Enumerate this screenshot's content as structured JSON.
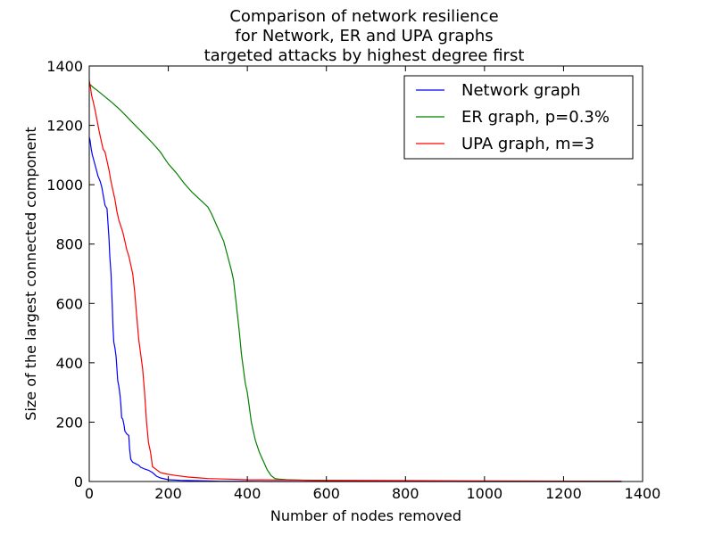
{
  "chart_data": {
    "type": "line",
    "title": [
      "Comparison of network resilience",
      "for Network, ER and UPA graphs",
      "targeted attacks by highest degree first"
    ],
    "xlabel": "Number of nodes removed",
    "ylabel": "Size of the largest connected component",
    "xlim": [
      0,
      1400
    ],
    "ylim": [
      0,
      1400
    ],
    "xticks": [
      0,
      200,
      400,
      600,
      800,
      1000,
      1200,
      1400
    ],
    "yticks": [
      0,
      200,
      400,
      600,
      800,
      1000,
      1200,
      1400
    ],
    "grid": false,
    "legend_position": "top-right",
    "series": [
      {
        "name": "Network graph",
        "color": "#0000ff",
        "x": [
          0,
          2,
          5,
          8,
          12,
          18,
          22,
          28,
          32,
          36,
          40,
          45,
          50,
          52,
          55,
          58,
          60,
          62,
          65,
          68,
          70,
          72,
          75,
          78,
          80,
          82,
          85,
          88,
          90,
          95,
          100,
          102,
          105,
          110,
          115,
          120,
          125,
          130,
          140,
          150,
          160,
          170,
          180,
          200,
          230,
          260,
          300,
          330,
          360,
          400,
          450,
          500,
          1000,
          1347
        ],
        "y": [
          1160,
          1150,
          1120,
          1100,
          1080,
          1050,
          1030,
          1010,
          990,
          960,
          930,
          920,
          820,
          760,
          700,
          600,
          520,
          470,
          450,
          420,
          380,
          340,
          320,
          290,
          260,
          215,
          210,
          190,
          170,
          160,
          155,
          110,
          75,
          65,
          62,
          58,
          55,
          48,
          42,
          38,
          30,
          18,
          12,
          6,
          4,
          3,
          2,
          1,
          1,
          1,
          0,
          0,
          0,
          0
        ]
      },
      {
        "name": "ER graph, p=0.3%",
        "color": "#008000",
        "x": [
          0,
          10,
          20,
          40,
          60,
          80,
          100,
          120,
          140,
          160,
          180,
          190,
          200,
          220,
          240,
          260,
          280,
          300,
          310,
          320,
          330,
          340,
          350,
          360,
          365,
          370,
          375,
          380,
          385,
          390,
          395,
          400,
          405,
          410,
          415,
          420,
          425,
          430,
          435,
          440,
          445,
          450,
          455,
          460,
          465,
          470,
          480,
          500,
          550,
          600,
          700,
          800,
          1000,
          1347
        ],
        "y": [
          1340,
          1328,
          1318,
          1296,
          1274,
          1250,
          1222,
          1195,
          1168,
          1140,
          1110,
          1090,
          1070,
          1040,
          1005,
          975,
          950,
          925,
          900,
          870,
          840,
          810,
          760,
          710,
          680,
          620,
          560,
          500,
          430,
          380,
          330,
          300,
          250,
          200,
          170,
          140,
          120,
          100,
          85,
          70,
          55,
          40,
          30,
          20,
          15,
          10,
          8,
          6,
          4,
          3,
          2,
          1,
          0,
          0
        ]
      },
      {
        "name": "UPA graph, m=3",
        "color": "#ff0000",
        "x": [
          0,
          3,
          6,
          10,
          15,
          20,
          25,
          30,
          35,
          40,
          45,
          50,
          55,
          60,
          65,
          70,
          75,
          80,
          85,
          90,
          95,
          100,
          105,
          110,
          115,
          120,
          125,
          130,
          135,
          140,
          145,
          150,
          155,
          160,
          165,
          170,
          175,
          180,
          190,
          200,
          220,
          250,
          280,
          300,
          350,
          400,
          500,
          600,
          800,
          1000,
          1347
        ],
        "y": [
          1350,
          1330,
          1300,
          1280,
          1250,
          1215,
          1180,
          1150,
          1120,
          1110,
          1080,
          1050,
          1010,
          980,
          950,
          910,
          880,
          860,
          840,
          810,
          780,
          760,
          730,
          700,
          640,
          560,
          480,
          430,
          380,
          300,
          200,
          130,
          100,
          50,
          45,
          40,
          35,
          30,
          27,
          24,
          20,
          15,
          12,
          10,
          8,
          6,
          5,
          4,
          3,
          2,
          1
        ]
      }
    ]
  }
}
